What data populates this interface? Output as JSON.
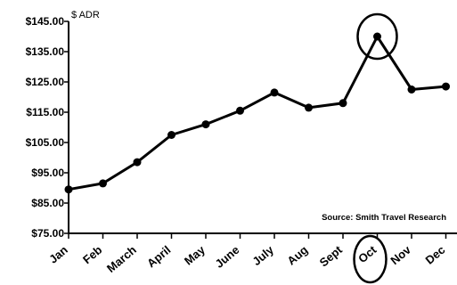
{
  "chart_data": {
    "type": "line",
    "ylabel": "$ ADR",
    "source": "Source: Smith Travel Research",
    "ylim": [
      75,
      145
    ],
    "y_ticks": [
      "$145.00",
      "$135.00",
      "$125.00",
      "$115.00",
      "$105.00",
      "$95.00",
      "$85.00",
      "$75.00"
    ],
    "categories": [
      "Jan",
      "Feb",
      "March",
      "April",
      "May",
      "June",
      "July",
      "Aug",
      "Sept",
      "Oct",
      "Nov",
      "Dec"
    ],
    "series": [
      {
        "values": [
          89.5,
          91.5,
          98.5,
          107.5,
          111.0,
          115.5,
          121.5,
          116.5,
          118.0,
          140.0,
          122.5,
          123.5
        ]
      }
    ],
    "highlight": {
      "category": "Oct",
      "style": "circled"
    },
    "grid": false,
    "line_color": "#000000"
  }
}
